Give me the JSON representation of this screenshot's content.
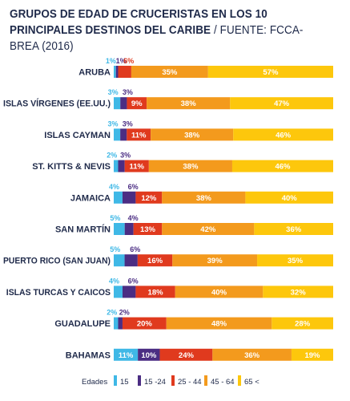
{
  "title_main": "GRUPOS DE EDAD DE CRUCERISTAS EN LOS 10 PRINCIPALES DESTINOS DEL CARIBE",
  "title_source": " / FUENTE: FCCA-BREA (2016)",
  "colors": {
    "15": "#3fb8e6",
    "15 -24": "#4b2d83",
    "25 - 44": "#e03a1e",
    "45 - 64": "#f39a1d",
    "65 <": "#fdc70c",
    "text": "#1f2a4a"
  },
  "chart_data": {
    "type": "bar",
    "orientation": "horizontal",
    "stacked": true,
    "categories": [
      "ARUBA",
      "ISLAS VÍRGENES (EE.UU.)",
      "ISLAS CAYMAN",
      "ST. KITTS & NEVIS",
      "JAMAICA",
      "SAN MARTÍN",
      "PUERTO RICO (SAN JUAN)",
      "ISLAS TURCAS Y CAICOS",
      "GUADALUPE",
      "BAHAMAS"
    ],
    "series": [
      {
        "name": "15",
        "values": [
          1,
          3,
          3,
          2,
          4,
          5,
          5,
          4,
          2,
          11
        ]
      },
      {
        "name": "15 -24",
        "values": [
          1,
          3,
          3,
          3,
          6,
          4,
          6,
          6,
          2,
          10
        ]
      },
      {
        "name": "25 - 44",
        "values": [
          6,
          9,
          11,
          11,
          12,
          13,
          16,
          18,
          20,
          24
        ]
      },
      {
        "name": "45 - 64",
        "values": [
          35,
          38,
          38,
          38,
          38,
          42,
          39,
          40,
          48,
          36
        ]
      },
      {
        "name": "65 <",
        "values": [
          57,
          47,
          46,
          46,
          40,
          36,
          35,
          32,
          28,
          19
        ]
      }
    ],
    "value_suffix": "%",
    "legend": {
      "title": "Edades",
      "position": "bottom"
    }
  }
}
